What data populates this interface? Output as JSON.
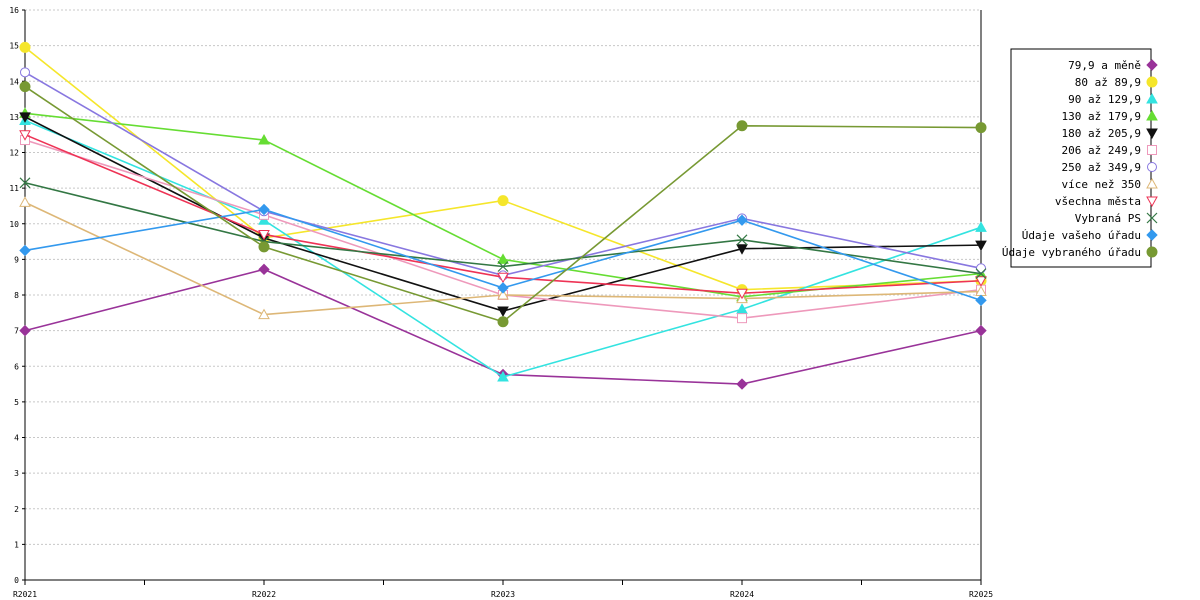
{
  "chart_data": {
    "type": "line",
    "title": "",
    "xlabel": "",
    "ylabel": "",
    "categories": [
      "R2021",
      "R2022",
      "R2023",
      "R2024",
      "R2025"
    ],
    "ylim": [
      0,
      16
    ],
    "yticks": [
      "0",
      "1",
      "2",
      "3",
      "4",
      "5",
      "6",
      "7",
      "8",
      "9",
      "10",
      "11",
      "12",
      "13",
      "14",
      "15",
      "16"
    ],
    "grid": "horizontal-dashed",
    "legend_position": "right",
    "series": [
      {
        "name": "79,9 a měně",
        "color": "#993399",
        "marker": "diamond-filled",
        "values": [
          7.0,
          8.72,
          5.77,
          5.5,
          7.0
        ]
      },
      {
        "name": "80 až 89,9",
        "color": "#f5e62b",
        "marker": "circle-filled",
        "values": [
          14.95,
          9.6,
          10.65,
          8.15,
          8.4
        ]
      },
      {
        "name": "90 až 129,9",
        "color": "#33e3e0",
        "marker": "triangle-up-filled",
        "values": [
          12.9,
          10.1,
          5.7,
          7.6,
          9.9
        ]
      },
      {
        "name": "130 až 179,9",
        "color": "#66dd33",
        "marker": "triangle-up-filled",
        "values": [
          13.1,
          12.35,
          9.0,
          7.95,
          8.6
        ]
      },
      {
        "name": "180 až 205,9",
        "color": "#111111",
        "marker": "triangle-down-filled",
        "values": [
          13.0,
          9.6,
          7.55,
          9.3,
          9.4
        ]
      },
      {
        "name": "206 až 249,9",
        "color": "#ee99bb",
        "marker": "square-open",
        "values": [
          12.35,
          10.25,
          8.0,
          7.35,
          8.15
        ]
      },
      {
        "name": "250 až 349,9",
        "color": "#8877e0",
        "marker": "circle-open",
        "values": [
          14.25,
          10.35,
          8.55,
          10.15,
          8.75
        ]
      },
      {
        "name": "více než 350",
        "color": "#ddb777",
        "marker": "triangle-up-open",
        "values": [
          10.6,
          7.45,
          8.0,
          7.9,
          8.1
        ]
      },
      {
        "name": "všechna města",
        "color": "#ee3355",
        "marker": "triangle-down-open",
        "values": [
          12.5,
          9.7,
          8.5,
          8.05,
          8.4
        ]
      },
      {
        "name": "Vybraná PS",
        "color": "#337744",
        "marker": "x",
        "values": [
          11.15,
          9.5,
          8.8,
          9.55,
          8.6
        ]
      },
      {
        "name": "Údaje vašeho úřadu",
        "color": "#3399ee",
        "marker": "diamond-filled",
        "values": [
          9.25,
          10.4,
          8.2,
          10.1,
          7.85
        ]
      },
      {
        "name": "Údaje vybraného úřadu",
        "color": "#779933",
        "marker": "circle-filled",
        "values": [
          13.85,
          9.35,
          7.25,
          12.75,
          12.7
        ]
      }
    ]
  }
}
